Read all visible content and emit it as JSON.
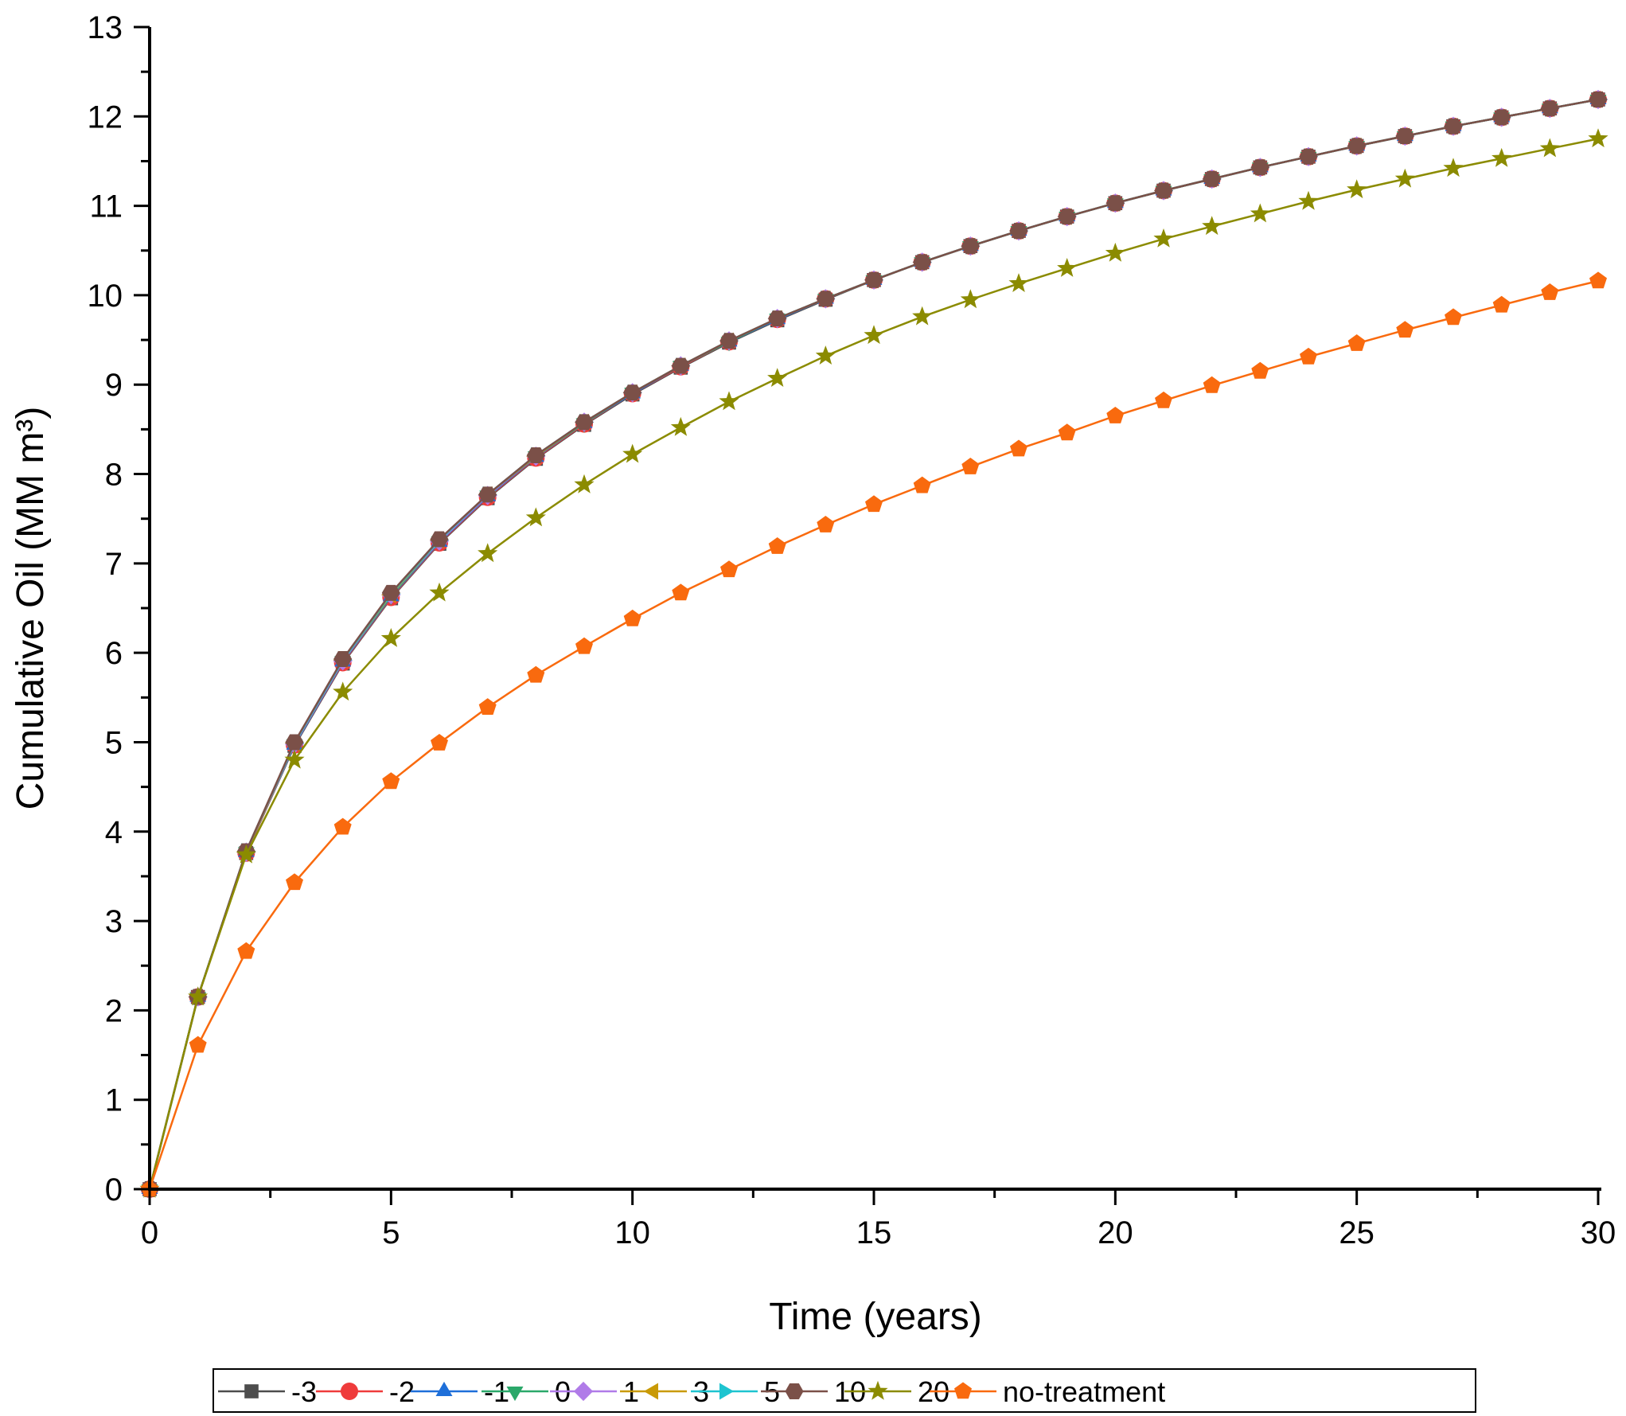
{
  "chart_data": {
    "type": "line",
    "title": "",
    "xlabel": "Time (years)",
    "ylabel": "Cumulative Oil (MM m³)",
    "xlim": [
      0,
      30
    ],
    "ylim": [
      0,
      13
    ],
    "xticks": [
      0,
      5,
      10,
      15,
      20,
      25,
      30
    ],
    "yticks": [
      0,
      1,
      2,
      3,
      4,
      5,
      6,
      7,
      8,
      9,
      10,
      11,
      12,
      13
    ],
    "grid": false,
    "legend_position": "bottom",
    "x": [
      0,
      1,
      2,
      3,
      4,
      5,
      6,
      7,
      8,
      9,
      10,
      11,
      12,
      13,
      14,
      15,
      16,
      17,
      18,
      19,
      20,
      21,
      22,
      23,
      24,
      25,
      26,
      27,
      28,
      29,
      30
    ],
    "series": [
      {
        "name": "-3",
        "color": "#4d4d4d",
        "marker": "square",
        "values": [
          0,
          2.15,
          3.76,
          4.96,
          5.88,
          6.61,
          7.22,
          7.73,
          8.17,
          8.55,
          8.89,
          9.19,
          9.47,
          9.72,
          9.95,
          10.17,
          10.37,
          10.55,
          10.72,
          10.88,
          11.03,
          11.17,
          11.3,
          11.43,
          11.55,
          11.67,
          11.78,
          11.89,
          11.99,
          12.09,
          12.19
        ]
      },
      {
        "name": "-2",
        "color": "#ef3b3b",
        "marker": "circle",
        "values": [
          0,
          2.15,
          3.76,
          4.97,
          5.89,
          6.62,
          7.23,
          7.74,
          8.18,
          8.56,
          8.9,
          9.2,
          9.48,
          9.73,
          9.96,
          10.17,
          10.37,
          10.55,
          10.72,
          10.88,
          11.03,
          11.17,
          11.3,
          11.43,
          11.55,
          11.67,
          11.78,
          11.89,
          11.99,
          12.09,
          12.19
        ]
      },
      {
        "name": "-1",
        "color": "#1e6fd9",
        "marker": "triangle-up",
        "values": [
          0,
          2.15,
          3.77,
          4.97,
          5.9,
          6.63,
          7.24,
          7.75,
          8.19,
          8.57,
          8.9,
          9.21,
          9.48,
          9.73,
          9.96,
          10.17,
          10.37,
          10.55,
          10.72,
          10.88,
          11.03,
          11.17,
          11.3,
          11.43,
          11.55,
          11.67,
          11.78,
          11.89,
          11.99,
          12.09,
          12.19
        ]
      },
      {
        "name": "0",
        "color": "#2ba86a",
        "marker": "triangle-down",
        "values": [
          0,
          2.15,
          3.77,
          4.98,
          5.91,
          6.64,
          7.25,
          7.76,
          8.2,
          8.57,
          8.91,
          9.21,
          9.48,
          9.74,
          9.96,
          10.17,
          10.37,
          10.55,
          10.72,
          10.88,
          11.03,
          11.17,
          11.3,
          11.43,
          11.55,
          11.67,
          11.78,
          11.89,
          11.99,
          12.09,
          12.19
        ]
      },
      {
        "name": "1",
        "color": "#b07be8",
        "marker": "diamond",
        "values": [
          0,
          2.15,
          3.77,
          4.98,
          5.91,
          6.65,
          7.25,
          7.76,
          8.2,
          8.58,
          8.91,
          9.21,
          9.49,
          9.74,
          9.96,
          10.17,
          10.37,
          10.55,
          10.72,
          10.88,
          11.03,
          11.17,
          11.3,
          11.43,
          11.55,
          11.67,
          11.78,
          11.89,
          11.99,
          12.09,
          12.19
        ]
      },
      {
        "name": "3",
        "color": "#c99a06",
        "marker": "triangle-left",
        "values": [
          0,
          2.15,
          3.77,
          4.99,
          5.92,
          6.65,
          7.26,
          7.77,
          8.2,
          8.58,
          8.91,
          9.21,
          9.49,
          9.74,
          9.96,
          10.17,
          10.37,
          10.55,
          10.72,
          10.88,
          11.03,
          11.17,
          11.3,
          11.43,
          11.55,
          11.67,
          11.78,
          11.89,
          11.99,
          12.09,
          12.19
        ]
      },
      {
        "name": "5",
        "color": "#1ec4d0",
        "marker": "triangle-right",
        "values": [
          0,
          2.15,
          3.78,
          4.99,
          5.92,
          6.66,
          7.26,
          7.77,
          8.21,
          8.58,
          8.91,
          9.21,
          9.49,
          9.74,
          9.96,
          10.17,
          10.37,
          10.55,
          10.72,
          10.88,
          11.03,
          11.17,
          11.3,
          11.43,
          11.55,
          11.67,
          11.78,
          11.89,
          11.99,
          12.09,
          12.19
        ]
      },
      {
        "name": "10",
        "color": "#7b5048",
        "marker": "hexagon",
        "values": [
          0,
          2.15,
          3.78,
          5.0,
          5.93,
          6.67,
          7.27,
          7.77,
          8.21,
          8.58,
          8.91,
          9.21,
          9.49,
          9.74,
          9.96,
          10.17,
          10.37,
          10.55,
          10.72,
          10.88,
          11.03,
          11.17,
          11.3,
          11.43,
          11.55,
          11.67,
          11.78,
          11.89,
          11.99,
          12.09,
          12.19
        ]
      },
      {
        "name": "20",
        "color": "#8b8b00",
        "marker": "star",
        "values": [
          0,
          2.15,
          3.74,
          4.8,
          5.56,
          6.16,
          6.67,
          7.11,
          7.51,
          7.88,
          8.22,
          8.52,
          8.81,
          9.07,
          9.32,
          9.55,
          9.76,
          9.95,
          10.13,
          10.3,
          10.47,
          10.63,
          10.77,
          10.91,
          11.05,
          11.18,
          11.3,
          11.42,
          11.53,
          11.64,
          11.75
        ]
      },
      {
        "name": "no-treatment",
        "color": "#f96a0e",
        "marker": "pentagon",
        "values": [
          0,
          1.61,
          2.66,
          3.43,
          4.05,
          4.56,
          4.99,
          5.39,
          5.75,
          6.07,
          6.38,
          6.67,
          6.93,
          7.19,
          7.43,
          7.66,
          7.87,
          8.08,
          8.28,
          8.46,
          8.65,
          8.82,
          8.99,
          9.15,
          9.31,
          9.46,
          9.61,
          9.75,
          9.89,
          10.03,
          10.16
        ]
      }
    ]
  }
}
